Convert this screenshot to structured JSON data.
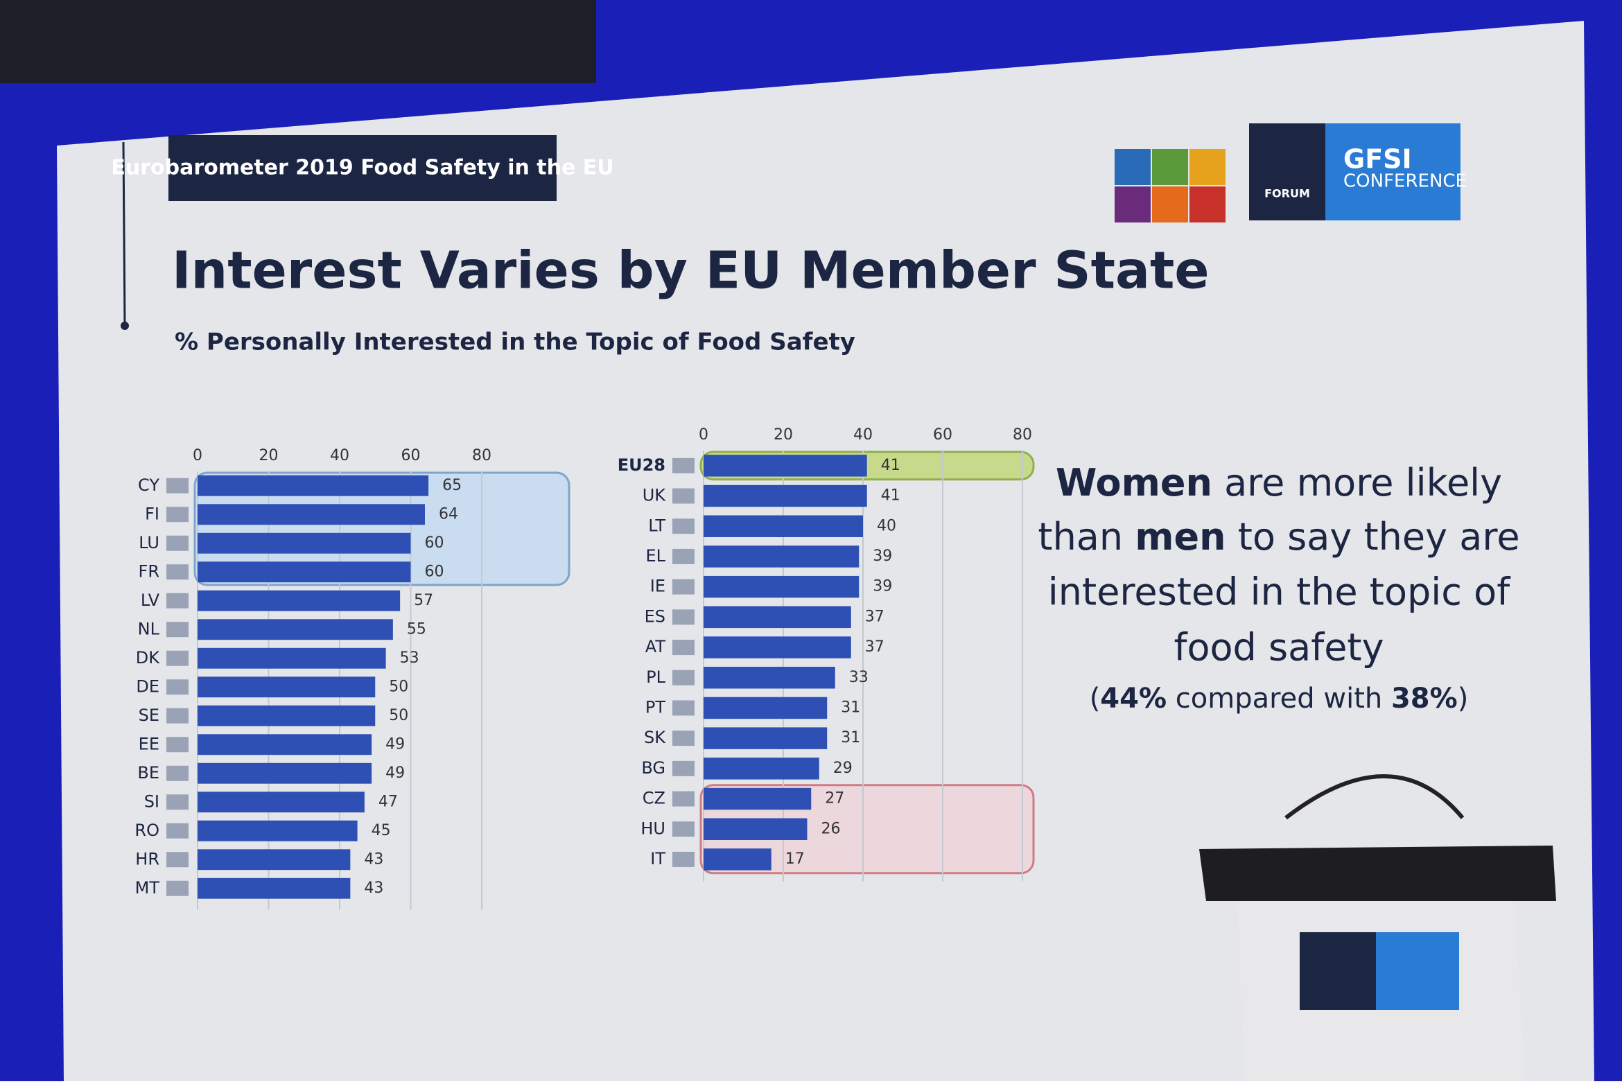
{
  "slide": {
    "tag": "Eurobarometer 2019 Food Safety in the EU",
    "title": "Interest Varies by EU Member State",
    "subtitle": "% Personally Interested in the Topic of Food Safety",
    "note": [
      "Women",
      " are more likely",
      "than ",
      "men",
      " to say they are",
      "interested in the topic of",
      "food safety"
    ],
    "note_sub": [
      "(",
      "44%",
      " compared with ",
      "38%",
      ")"
    ],
    "logo": {
      "title": "GFSI",
      "subtitle": "CONFERENCE",
      "forum": "FORUM"
    }
  },
  "chart_data": [
    {
      "type": "hbar",
      "color": "#2e50b4",
      "categories": [
        "CY",
        "FI",
        "LU",
        "FR",
        "LV",
        "NL",
        "DK",
        "DE",
        "SE",
        "EE",
        "BE",
        "SI",
        "RO",
        "HR",
        "MT"
      ],
      "values": [
        65,
        64,
        60,
        60,
        57,
        55,
        53,
        50,
        50,
        49,
        49,
        47,
        45,
        43,
        43
      ],
      "xlim": [
        0,
        80
      ],
      "xticks": [
        0,
        20,
        40,
        60,
        80
      ],
      "grid": true
    },
    {
      "type": "hbar",
      "color": "#2e50b4",
      "categories": [
        "EU28",
        "UK",
        "LT",
        "EL",
        "IE",
        "ES",
        "AT",
        "PL",
        "PT",
        "SK",
        "BG",
        "CZ",
        "HU",
        "IT"
      ],
      "values": [
        41,
        41,
        40,
        39,
        39,
        37,
        37,
        33,
        31,
        31,
        29,
        27,
        26,
        17
      ],
      "xlim": [
        0,
        80
      ],
      "xticks": [
        0,
        20,
        40,
        60,
        80
      ],
      "grid": true
    }
  ]
}
